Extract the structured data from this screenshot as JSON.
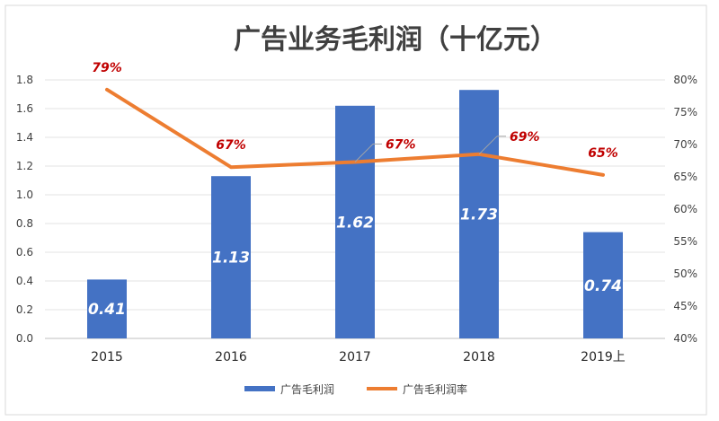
{
  "chart_data": {
    "type": "bar",
    "title": "广告业务毛利润（十亿元）",
    "categories": [
      "2015",
      "2016",
      "2017",
      "2018",
      "2019上"
    ],
    "series": [
      {
        "name": "广告毛利润",
        "type": "bar",
        "axis": "left",
        "values": [
          0.41,
          1.13,
          1.62,
          1.73,
          0.74
        ],
        "labels": [
          "0.41",
          "1.13",
          "1.62",
          "1.73",
          "0.74"
        ],
        "color": "#4472c4"
      },
      {
        "name": "广告毛利润率",
        "type": "line",
        "axis": "right",
        "values": [
          78.5,
          66.5,
          67.3,
          68.5,
          65.3
        ],
        "labels": [
          "79%",
          "67%",
          "67%",
          "69%",
          "65%"
        ],
        "color": "#ed7d31"
      }
    ],
    "ylim": [
      0,
      1.8
    ],
    "yticks": [
      "0.0",
      "0.2",
      "0.4",
      "0.6",
      "0.8",
      "1.0",
      "1.2",
      "1.4",
      "1.6",
      "1.8"
    ],
    "y2lim": [
      40,
      80
    ],
    "y2ticks": [
      "40%",
      "45%",
      "50%",
      "55%",
      "60%",
      "65%",
      "70%",
      "75%",
      "80%"
    ],
    "label_color": "#c00000",
    "legend": "bottom"
  }
}
